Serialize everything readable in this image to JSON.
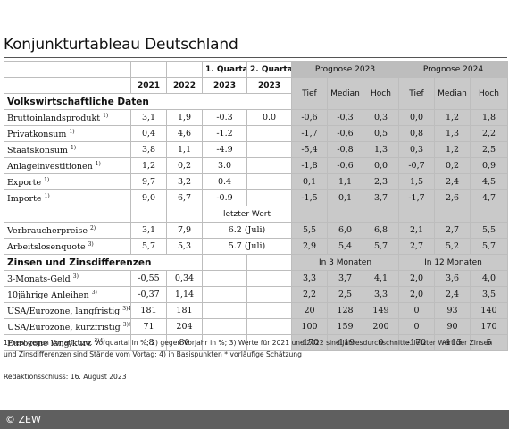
{
  "title": "Konjunkturtableau Deutschland",
  "header": {
    "q1": "1. Quartal",
    "q2": "2. Quartal",
    "prognose2023": "Prognose 2023",
    "prognose2024": "Prognose 2024",
    "years": [
      "2021",
      "2022",
      "2023",
      "2023"
    ],
    "sub": [
      "Tief",
      "Median",
      "Hoch",
      "Tief",
      "Median",
      "Hoch"
    ]
  },
  "section1": "Volkswirtschaftliche Daten",
  "rows1": [
    {
      "label": "Bruttoinlandsprodukt",
      "sup": "1)",
      "v": [
        "3,1",
        "1,9",
        "-0.3",
        "0.0",
        "-0,6",
        "-0,3",
        "0,3",
        "0,0",
        "1,2",
        "1,8"
      ]
    },
    {
      "label": "Privatkonsum",
      "sup": "1)",
      "v": [
        "0,4",
        "4,6",
        "-1.2",
        "",
        "-1,7",
        "-0,6",
        "0,5",
        "0,8",
        "1,3",
        "2,2"
      ]
    },
    {
      "label": "Staatskonsum",
      "sup": "1)",
      "v": [
        "3,8",
        "1,1",
        "-4.9",
        "",
        "-5,4",
        "-0,8",
        "1,3",
        "0,3",
        "1,2",
        "2,5"
      ]
    },
    {
      "label": "Anlageinvestitionen",
      "sup": "1)",
      "v": [
        "1,2",
        "0,2",
        "3.0",
        "",
        "-1,8",
        "-0,6",
        "0,0",
        "-0,7",
        "0,2",
        "0,9"
      ]
    },
    {
      "label": "Exporte",
      "sup": "1)",
      "v": [
        "9,7",
        "3,2",
        "0.4",
        "",
        "0,1",
        "1,1",
        "2,3",
        "1,5",
        "2,4",
        "4,5"
      ]
    },
    {
      "label": "Importe",
      "sup": "1)",
      "v": [
        "9,0",
        "6,7",
        "-0.9",
        "",
        "-1,5",
        "0,1",
        "3,7",
        "-1,7",
        "2,6",
        "4,7"
      ]
    }
  ],
  "letzter_wert": "letzter Wert",
  "rows2": [
    {
      "label": "Verbraucherpreise",
      "sup": "2)",
      "v": [
        "3,1",
        "7,9",
        "6.2 (Juli)",
        "5,5",
        "6,0",
        "6,8",
        "2,1",
        "2,7",
        "5,5"
      ]
    },
    {
      "label": "Arbeitslosenquote",
      "sup": "3)",
      "v": [
        "5,7",
        "5,3",
        "5.7 (Juli)",
        "2,9",
        "5,4",
        "5,7",
        "2,7",
        "5,2",
        "5,7"
      ]
    }
  ],
  "section2": "Zinsen und Zinsdifferenzen",
  "in3": "In 3 Monaten",
  "in12": "In 12 Monaten",
  "rows3": [
    {
      "label": "3-Monats-Geld",
      "sup": "3)",
      "v": [
        "-0,55",
        "0,34",
        "3,3",
        "3,7",
        "4,1",
        "2,0",
        "3,6",
        "4,0"
      ]
    },
    {
      "label": "10jährige Anleihen",
      "sup": "3)",
      "v": [
        "-0,37",
        "1,14",
        "2,2",
        "2,5",
        "3,3",
        "2,0",
        "2,4",
        "3,5"
      ]
    },
    {
      "label": "USA/Eurozone, langfristig",
      "sup": "3)4)",
      "v": [
        "181",
        "181",
        "20",
        "128",
        "149",
        "0",
        "93",
        "140"
      ]
    },
    {
      "label": "USA/Eurozone, kurzfristig",
      "sup": "3)4)",
      "v": [
        "71",
        "204",
        "100",
        "159",
        "200",
        "0",
        "90",
        "170"
      ]
    },
    {
      "label": "Eurozone lang/kurz",
      "sup": "3)4)",
      "v": [
        "18",
        "80",
        "-170",
        "-119",
        "0",
        "-170",
        "-115",
        "5"
      ]
    }
  ],
  "footnote": "1) real gegen Vorjahr bzw. Vorquartal in %; 2) gegen Vorjahr in %; 3) Werte für 2021 und 2022 sind Jahresdurchschnitte. letzter Wert der Zinsen und Zinsdifferenzen sind Stände vom Vortag; 4) in Basispunkten * vorläufige Schätzung",
  "redaktion": "Redaktionsschluss: 16. August 2023",
  "copyright": "© ZEW"
}
